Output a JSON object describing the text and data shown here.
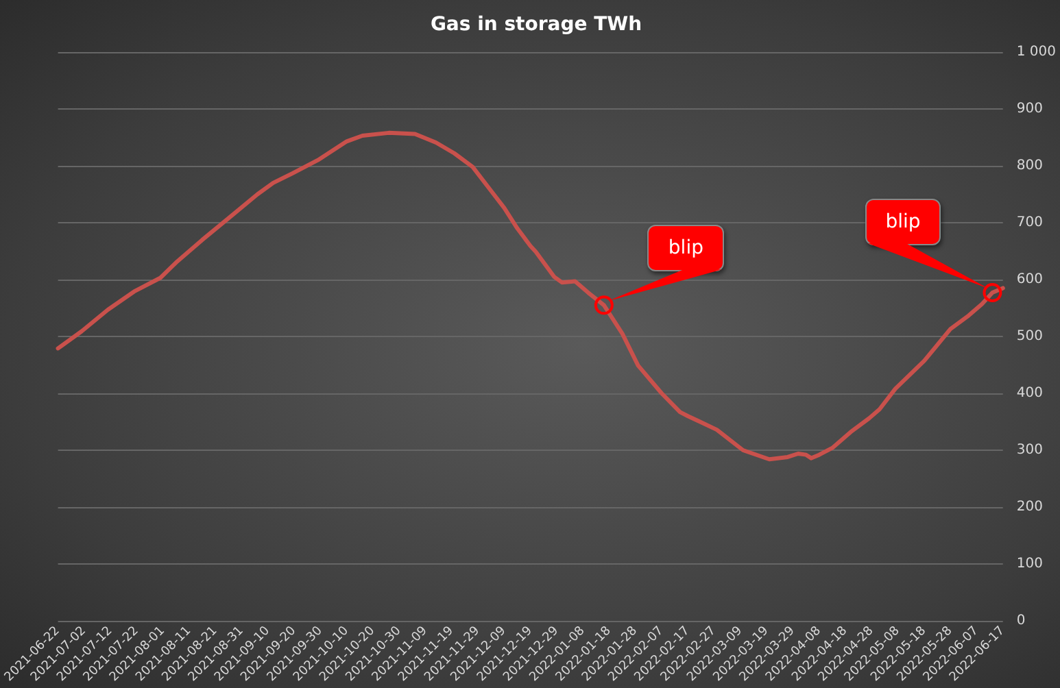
{
  "chart_data": {
    "type": "line",
    "title": "Gas in storage TWh",
    "x": [
      "2021-06-22",
      "2021-07-01",
      "2021-07-11",
      "2021-07-21",
      "2021-07-31",
      "2021-08-06",
      "2021-08-16",
      "2021-08-26",
      "2021-09-06",
      "2021-09-12",
      "2021-09-19",
      "2021-09-29",
      "2021-10-10",
      "2021-10-16",
      "2021-10-26",
      "2021-11-05",
      "2021-11-13",
      "2021-11-20",
      "2021-11-27",
      "2021-12-04",
      "2021-12-09",
      "2021-12-14",
      "2021-12-19",
      "2021-12-21",
      "2021-12-28",
      "2021-12-31",
      "2022-01-05",
      "2022-01-10",
      "2022-01-16",
      "2022-01-23",
      "2022-01-29",
      "2022-02-07",
      "2022-02-14",
      "2022-02-17",
      "2022-02-28",
      "2022-03-10",
      "2022-03-20",
      "2022-03-27",
      "2022-03-31",
      "2022-04-03",
      "2022-04-05",
      "2022-04-08",
      "2022-04-13",
      "2022-04-20",
      "2022-04-27",
      "2022-05-01",
      "2022-05-07",
      "2022-05-18",
      "2022-05-28",
      "2022-06-04",
      "2022-06-09",
      "2022-06-13",
      "2022-06-17"
    ],
    "series": [
      {
        "color": "#c9514c",
        "values": [
          479,
          509,
          547,
          579,
          603,
          630,
          670,
          708,
          750,
          770,
          786,
          810,
          843,
          853,
          858,
          856,
          841,
          822,
          798,
          756,
          726,
          690,
          659,
          649,
          605,
          595,
          597,
          577,
          555,
          505,
          449,
          400,
          367,
          360,
          336,
          300,
          284,
          288,
          294,
          292,
          286,
          292,
          304,
          332,
          356,
          372,
          408,
          457,
          513,
          537,
          557,
          577,
          585
        ]
      }
    ],
    "xlim": [
      "2021-06-22",
      "2022-06-17"
    ],
    "xticks": [
      "2021-06-22",
      "2021-07-02",
      "2021-07-12",
      "2021-07-22",
      "2021-08-01",
      "2021-08-11",
      "2021-08-21",
      "2021-08-31",
      "2021-09-10",
      "2021-09-20",
      "2021-09-30",
      "2021-10-10",
      "2021-10-20",
      "2021-10-30",
      "2021-11-09",
      "2021-11-19",
      "2021-11-29",
      "2021-12-09",
      "2021-12-19",
      "2021-12-29",
      "2022-01-08",
      "2022-01-18",
      "2022-01-28",
      "2022-02-07",
      "2022-02-17",
      "2022-02-27",
      "2022-03-09",
      "2022-03-19",
      "2022-03-29",
      "2022-04-08",
      "2022-04-18",
      "2022-04-28",
      "2022-05-08",
      "2022-05-18",
      "2022-05-28",
      "2022-06-07",
      "2022-06-17"
    ],
    "ylim": [
      0,
      1000
    ],
    "yticks": [
      0,
      100,
      200,
      300,
      400,
      500,
      600,
      700,
      800,
      900,
      {
        "value": 1000,
        "label": "1 000"
      }
    ],
    "grid": "y",
    "marker": "none",
    "line_style": "solid",
    "annotations": [
      {
        "text": "blip",
        "x": "2022-01-16",
        "y": 555
      },
      {
        "text": "blip",
        "x": "2022-06-13",
        "y": 577
      }
    ]
  }
}
